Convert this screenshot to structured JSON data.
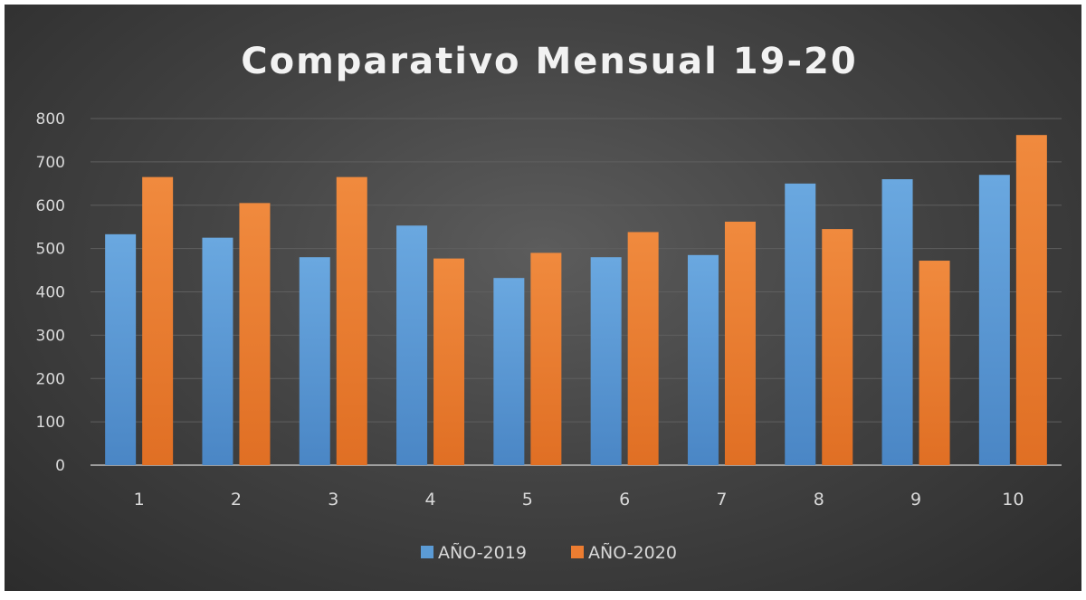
{
  "chart_data": {
    "type": "bar",
    "title": "Comparativo Mensual 19-20",
    "xlabel": "",
    "ylabel": "",
    "categories": [
      "1",
      "2",
      "3",
      "4",
      "5",
      "6",
      "7",
      "8",
      "9",
      "10"
    ],
    "series": [
      {
        "name": "AÑO-2019",
        "color": "#5b9bd5",
        "values": [
          533,
          525,
          480,
          553,
          432,
          480,
          485,
          650,
          660,
          670
        ]
      },
      {
        "name": "AÑO-2020",
        "color": "#ed7d31",
        "values": [
          665,
          605,
          665,
          477,
          490,
          538,
          562,
          545,
          472,
          762
        ]
      }
    ],
    "ylim": [
      0,
      800
    ],
    "yticks": [
      "0",
      "100",
      "200",
      "300",
      "400",
      "500",
      "600",
      "700",
      "800"
    ],
    "grid": true,
    "legend": "bottom-center"
  }
}
